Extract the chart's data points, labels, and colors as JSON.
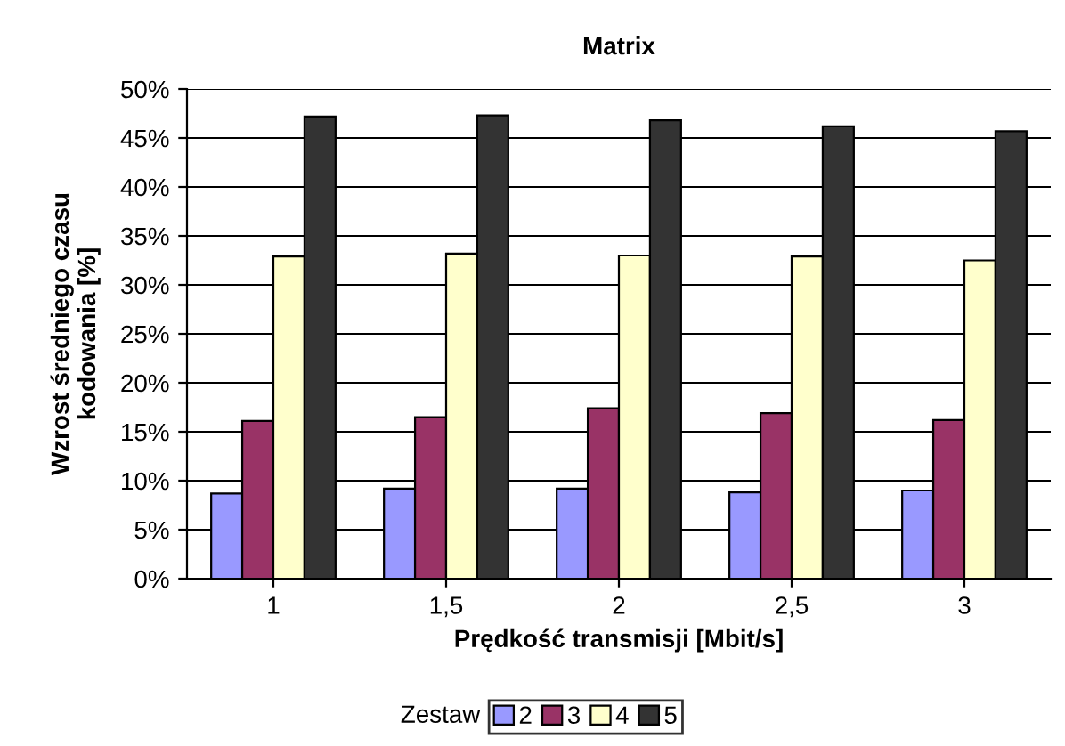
{
  "chart_data": {
    "type": "bar",
    "title": "Matrix",
    "xlabel": "Prędkość transmisji [Mbit/s]",
    "ylabel": "Wzrost średniego czasu\nkodowania [%]",
    "legend_title": "Zestaw",
    "categories": [
      "1",
      "1,5",
      "2",
      "2,5",
      "3"
    ],
    "series": [
      {
        "name": "2",
        "color": "#9999ff",
        "values": [
          8.7,
          9.2,
          9.2,
          8.8,
          9.0
        ]
      },
      {
        "name": "3",
        "color": "#993366",
        "values": [
          16.1,
          16.5,
          17.4,
          16.9,
          16.2
        ]
      },
      {
        "name": "4",
        "color": "#ffffcc",
        "values": [
          32.9,
          33.2,
          33.0,
          32.9,
          32.5
        ]
      },
      {
        "name": "5",
        "color": "#333333",
        "values": [
          47.2,
          47.3,
          46.8,
          46.2,
          45.7
        ]
      }
    ],
    "ylim": [
      0,
      50
    ],
    "yticks": [
      {
        "value": 0,
        "label": "0%"
      },
      {
        "value": 5,
        "label": "5%"
      },
      {
        "value": 10,
        "label": "10%"
      },
      {
        "value": 15,
        "label": "15%"
      },
      {
        "value": 20,
        "label": "20%"
      },
      {
        "value": 25,
        "label": "25%"
      },
      {
        "value": 30,
        "label": "30%"
      },
      {
        "value": 35,
        "label": "35%"
      },
      {
        "value": 40,
        "label": "40%"
      },
      {
        "value": 45,
        "label": "45%"
      },
      {
        "value": 50,
        "label": "50%"
      }
    ],
    "grid": "y",
    "legend": "bottom"
  }
}
